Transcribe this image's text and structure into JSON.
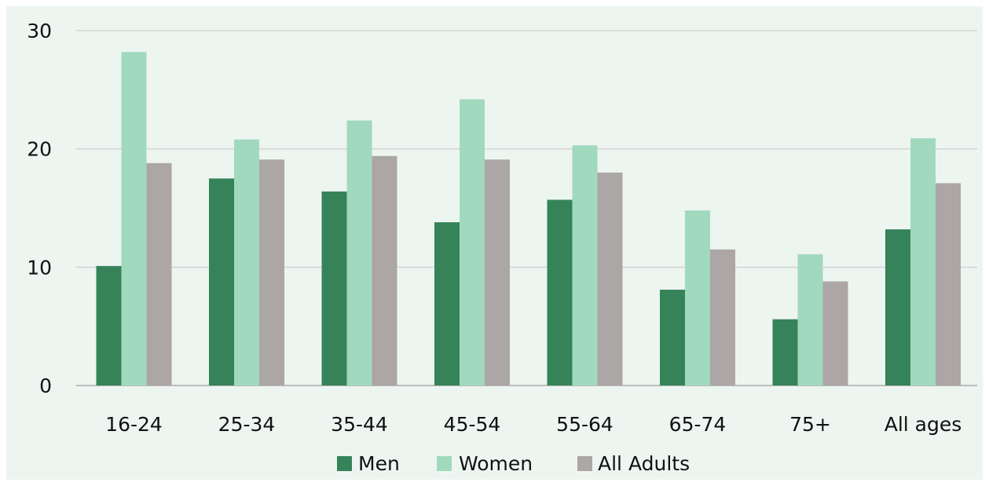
{
  "chart_data": {
    "type": "bar",
    "title": "",
    "xlabel": "",
    "ylabel": "",
    "categories": [
      "16-24",
      "25-34",
      "35-44",
      "45-54",
      "55-64",
      "65-74",
      "75+",
      "All ages"
    ],
    "series": [
      {
        "name": "Men",
        "color": "#368359",
        "values": [
          10.1,
          17.5,
          16.4,
          13.8,
          15.7,
          8.1,
          5.6,
          13.2
        ]
      },
      {
        "name": "Women",
        "color": "#a1d9bf",
        "values": [
          28.2,
          20.8,
          22.4,
          24.2,
          20.3,
          14.8,
          11.1,
          20.9
        ]
      },
      {
        "name": "All Adults",
        "color": "#aca6a6",
        "values": [
          18.8,
          19.1,
          19.4,
          19.1,
          18.0,
          11.5,
          8.8,
          17.1
        ]
      }
    ],
    "ylim": [
      0,
      30
    ],
    "yticks": [
      0,
      10,
      20,
      30
    ],
    "grid": true,
    "legend_position": "bottom-center"
  }
}
